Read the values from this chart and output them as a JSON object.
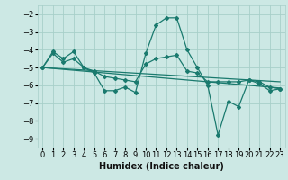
{
  "xlabel": "Humidex (Indice chaleur)",
  "xlim": [
    -0.5,
    23.5
  ],
  "ylim": [
    -9.5,
    -1.5
  ],
  "yticks": [
    -9,
    -8,
    -7,
    -6,
    -5,
    -4,
    -3,
    -2
  ],
  "xticks": [
    0,
    1,
    2,
    3,
    4,
    5,
    6,
    7,
    8,
    9,
    10,
    11,
    12,
    13,
    14,
    15,
    16,
    17,
    18,
    19,
    20,
    21,
    22,
    23
  ],
  "bg_color": "#cce8e4",
  "grid_color": "#a8cfc9",
  "line_color": "#1a7a6e",
  "line1_x": [
    0,
    1,
    2,
    3,
    4,
    5,
    6,
    7,
    8,
    9,
    10,
    11,
    12,
    13,
    14,
    15,
    16,
    17,
    18,
    19,
    20,
    21,
    22,
    23
  ],
  "line1_y": [
    -5.0,
    -4.1,
    -4.5,
    -4.1,
    -5.0,
    -5.3,
    -6.3,
    -6.3,
    -6.1,
    -6.4,
    -4.2,
    -2.6,
    -2.2,
    -2.2,
    -4.0,
    -5.0,
    -6.0,
    -8.8,
    -6.9,
    -7.2,
    -5.7,
    -5.9,
    -6.3,
    -6.2
  ],
  "line2_x": [
    0,
    1,
    2,
    3,
    4,
    5,
    6,
    7,
    8,
    9,
    10,
    11,
    12,
    13,
    14,
    15,
    16,
    17,
    18,
    19,
    20,
    21,
    22,
    23
  ],
  "line2_y": [
    -5.0,
    -4.2,
    -4.7,
    -4.5,
    -5.0,
    -5.2,
    -5.5,
    -5.6,
    -5.7,
    -5.8,
    -4.8,
    -4.5,
    -4.4,
    -4.3,
    -5.2,
    -5.3,
    -5.8,
    -5.8,
    -5.8,
    -5.8,
    -5.7,
    -5.8,
    -6.1,
    -6.2
  ],
  "line3_x": [
    0,
    23
  ],
  "line3_y": [
    -5.0,
    -5.8
  ],
  "line4_x": [
    0,
    23
  ],
  "line4_y": [
    -5.0,
    -6.15
  ],
  "tick_fontsize": 6,
  "xlabel_fontsize": 7
}
